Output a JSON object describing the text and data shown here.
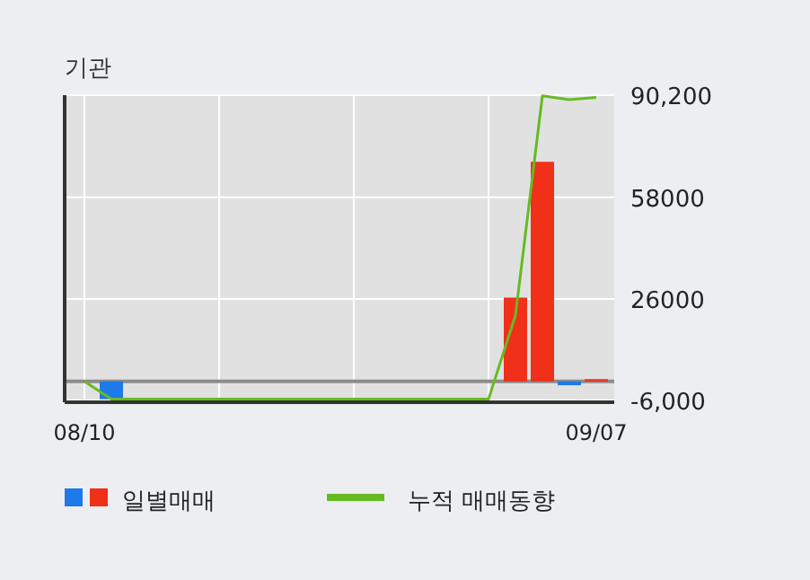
{
  "chart_data": {
    "type": "bar",
    "title": "기관",
    "categories": [
      "08/10",
      null,
      null,
      null,
      null,
      null,
      null,
      null,
      null,
      null,
      null,
      null,
      null,
      null,
      null,
      null,
      null,
      null,
      null,
      "09/07"
    ],
    "series": [
      {
        "name": "일별매매",
        "colors": [
          "#f03018",
          "#1e7ae8",
          "#f03018",
          "#f03018",
          "#f03018",
          "#f03018",
          "#f03018",
          "#f03018",
          "#f03018",
          "#f03018",
          "#f03018",
          "#f03018",
          "#f03018",
          "#f03018",
          "#f03018",
          "#f03018",
          "#f03018",
          "#f03018",
          "#1e7ae8",
          "#f03018"
        ],
        "values": [
          0,
          -5600,
          0,
          0,
          0,
          0,
          0,
          0,
          0,
          0,
          0,
          0,
          0,
          0,
          0,
          0,
          26400,
          69200,
          -1200,
          700
        ]
      },
      {
        "type": "line",
        "name": "누적 매매동향",
        "color": "#66bb22",
        "values": [
          0,
          -5600,
          -5600,
          -5600,
          -5600,
          -5600,
          -5600,
          -5600,
          -5600,
          -5600,
          -5600,
          -5600,
          -5600,
          -5600,
          -5600,
          -5600,
          20800,
          90000,
          88800,
          89500
        ]
      }
    ],
    "ylim": [
      -6000,
      90200
    ],
    "yticks": [
      {
        "value": 90200,
        "label": "90,200"
      },
      58000,
      26000,
      {
        "value": -6000,
        "label": "-6,000"
      }
    ],
    "ref_lines": [
      {
        "axis": "y",
        "value": 0,
        "color": "#8c8c8c"
      }
    ],
    "grid": true,
    "legend": "bottom"
  }
}
